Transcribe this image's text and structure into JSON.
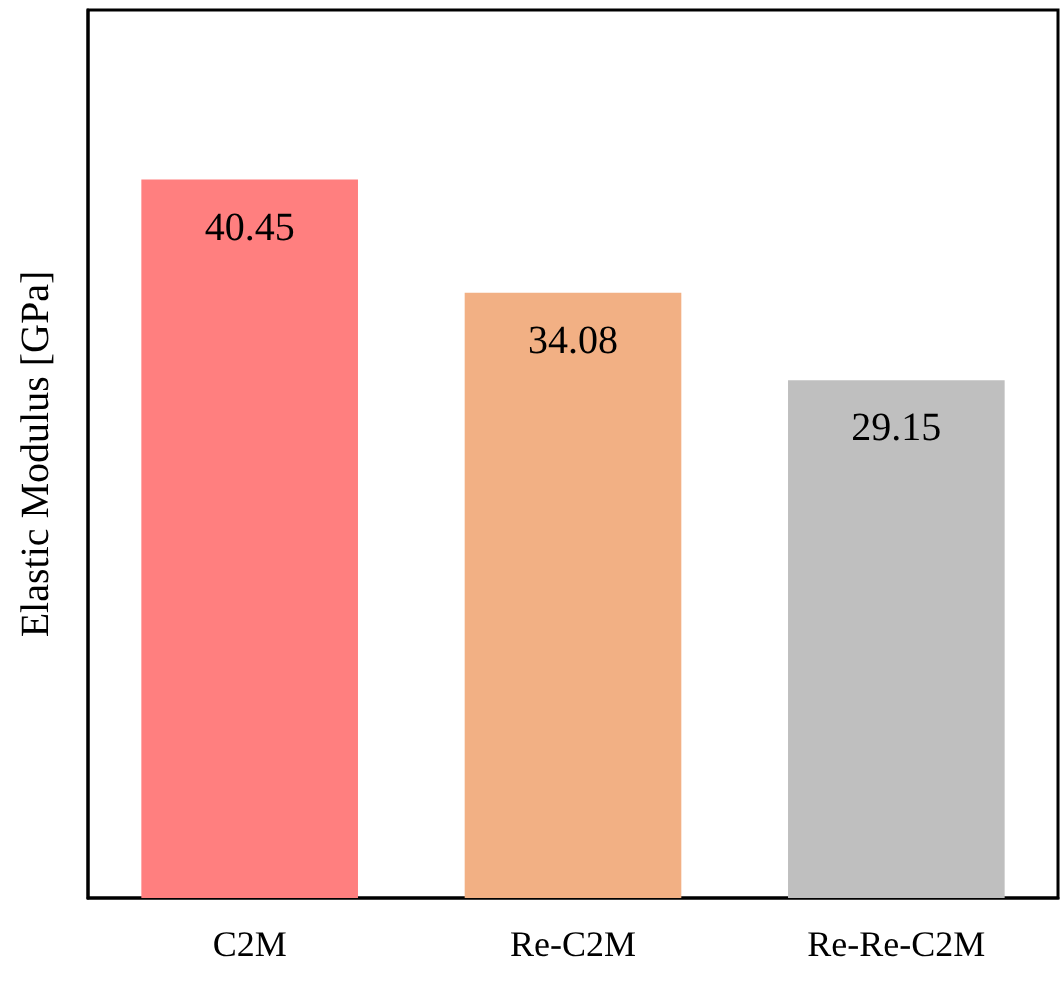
{
  "chart_data": {
    "type": "bar",
    "ylabel": "Elastic Modulus [GPa]",
    "categories": [
      "C2M",
      "Re-C2M",
      "Re-Re-C2M"
    ],
    "values": [
      40.45,
      34.08,
      29.15
    ],
    "colors": [
      "#ff7f7f",
      "#f2b084",
      "#bfbfbf"
    ],
    "ylim": [
      0,
      50
    ],
    "tick_labels": "x",
    "data_labels": true
  }
}
